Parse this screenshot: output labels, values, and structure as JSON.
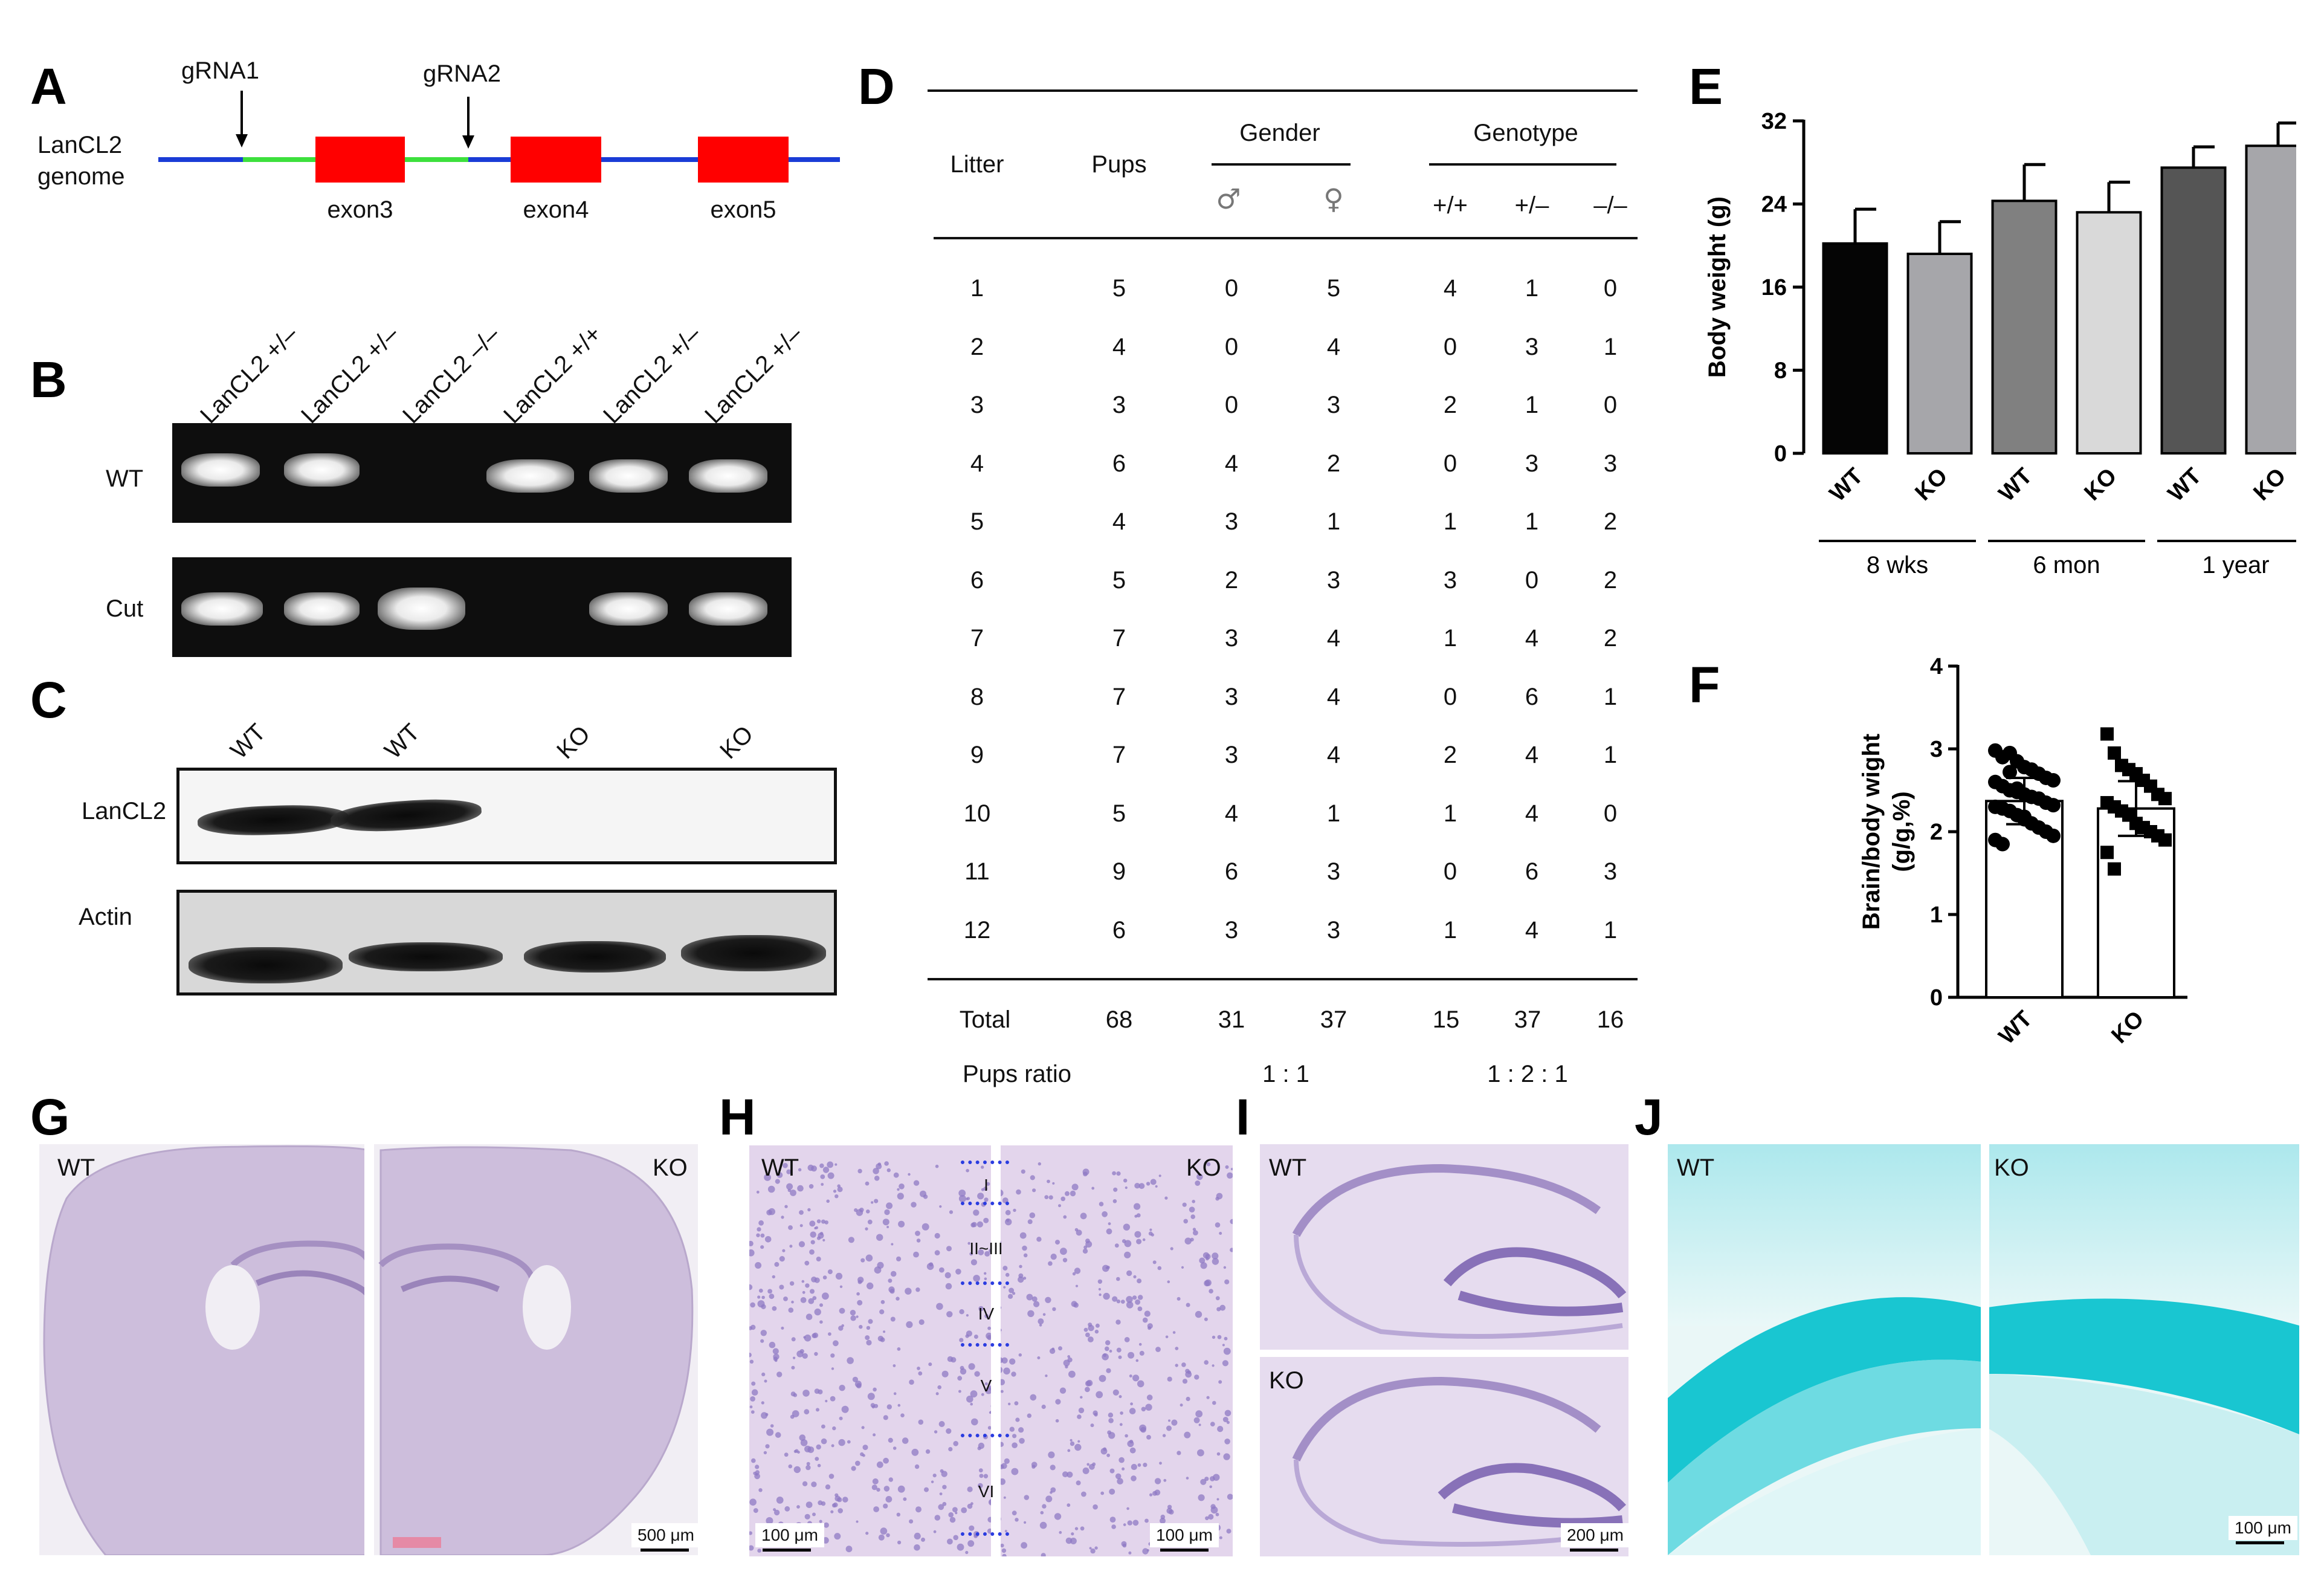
{
  "panels": {
    "A": "A",
    "B": "B",
    "C": "C",
    "D": "D",
    "E": "E",
    "F": "F",
    "G": "G",
    "H": "H",
    "I": "I",
    "J": "J"
  },
  "panelA": {
    "grna1": "gRNA1",
    "grna2": "gRNA2",
    "genome_label_1": "LanCL2",
    "genome_label_2": "genome",
    "exons": [
      "exon3",
      "exon4",
      "exon5"
    ],
    "colors": {
      "intron": "#1a3cd6",
      "targeted": "#3de03d",
      "exon": "#ff0000"
    }
  },
  "panelB": {
    "lanes": [
      "LanCL2 +/–",
      "LanCL2 +/–",
      "LanCL2 –/–",
      "LanCL2 +/+",
      "LanCL2 +/–",
      "LanCL2 +/–"
    ],
    "row_labels": [
      "WT",
      "Cut"
    ]
  },
  "panelC": {
    "lanes": [
      "WT",
      "WT",
      "KO",
      "KO"
    ],
    "row_labels": [
      "LanCL2",
      "Actin"
    ]
  },
  "panelD": {
    "headers": {
      "litter": "Litter",
      "pups": "Pups",
      "gender": "Gender",
      "genotype": "Genotype",
      "male": "♂",
      "female": "♀",
      "wt": "+/+",
      "het": "+/–",
      "ko": "–/–"
    },
    "rows": [
      [
        "1",
        "5",
        "0",
        "5",
        "4",
        "1",
        "0"
      ],
      [
        "2",
        "4",
        "0",
        "4",
        "0",
        "3",
        "1"
      ],
      [
        "3",
        "3",
        "0",
        "3",
        "2",
        "1",
        "0"
      ],
      [
        "4",
        "6",
        "4",
        "2",
        "0",
        "3",
        "3"
      ],
      [
        "5",
        "4",
        "3",
        "1",
        "1",
        "1",
        "2"
      ],
      [
        "6",
        "5",
        "2",
        "3",
        "3",
        "0",
        "2"
      ],
      [
        "7",
        "7",
        "3",
        "4",
        "1",
        "4",
        "2"
      ],
      [
        "8",
        "7",
        "3",
        "4",
        "0",
        "6",
        "1"
      ],
      [
        "9",
        "7",
        "3",
        "4",
        "2",
        "4",
        "1"
      ],
      [
        "10",
        "5",
        "4",
        "1",
        "1",
        "4",
        "0"
      ],
      [
        "11",
        "9",
        "6",
        "3",
        "0",
        "6",
        "3"
      ],
      [
        "12",
        "6",
        "3",
        "3",
        "1",
        "4",
        "1"
      ]
    ],
    "total": [
      "Total",
      "68",
      "31",
      "37",
      "15",
      "37",
      "16"
    ],
    "ratio_label": "Pups ratio",
    "gender_ratio": "1 : 1",
    "genotype_ratio": "1 : 2 : 1"
  },
  "chart_data": [
    {
      "type": "bar",
      "panel": "E",
      "ylabel": "Body weight (g)",
      "ylim": [
        0,
        32
      ],
      "yticks": [
        "0",
        "8",
        "16",
        "24",
        "32"
      ],
      "categories": [
        "WT",
        "KO",
        "WT",
        "KO",
        "WT",
        "KO"
      ],
      "groups": [
        "8 wks",
        "6 mon",
        "1 year"
      ],
      "values": [
        20.2,
        19.2,
        24.3,
        23.2,
        27.5,
        29.6
      ],
      "errors": [
        3.3,
        3.1,
        3.5,
        2.9,
        2.0,
        2.2
      ],
      "colors": [
        "#050505",
        "#a6a6aa",
        "#808080",
        "#d9d9d9",
        "#555555",
        "#a6a6aa"
      ]
    },
    {
      "type": "scatter",
      "panel": "F",
      "ylabel_1": "Brain/body wight",
      "ylabel_2": "(g/g,%)",
      "ylim": [
        0,
        4
      ],
      "yticks": [
        "0",
        "1",
        "2",
        "3",
        "4"
      ],
      "categories": [
        "WT",
        "KO"
      ],
      "means": [
        2.37,
        2.28
      ],
      "errors": [
        0.28,
        0.33
      ],
      "series": [
        {
          "values": [
            2.98,
            2.9,
            2.95,
            2.85,
            2.78,
            2.75,
            2.7,
            2.65,
            2.62,
            2.6,
            2.55,
            2.5,
            2.48,
            2.45,
            2.42,
            2.4,
            2.35,
            2.32,
            2.3,
            2.28,
            2.25,
            2.2,
            2.15,
            2.1,
            2.05,
            2.0,
            1.95,
            1.9,
            1.85,
            2.72,
            2.52,
            2.18
          ]
        },
        {
          "values": [
            3.18,
            2.95,
            2.8,
            2.75,
            2.7,
            2.62,
            2.55,
            2.45,
            2.4,
            2.35,
            2.3,
            2.25,
            2.2,
            2.1,
            2.05,
            2.0,
            1.95,
            1.9,
            1.75,
            1.55
          ]
        }
      ]
    }
  ],
  "panelG": {
    "wt": "WT",
    "ko": "KO",
    "scale": "500 μm"
  },
  "panelH": {
    "wt": "WT",
    "ko": "KO",
    "layers": [
      "I",
      "II~III",
      "IV",
      "V",
      "VI"
    ],
    "scale_left": "100 μm",
    "scale_right": "100 μm"
  },
  "panelI": {
    "wt": "WT",
    "ko": "KO",
    "scale": "200 μm"
  },
  "panelJ": {
    "wt": "WT",
    "ko": "KO",
    "scale": "100 μm"
  }
}
